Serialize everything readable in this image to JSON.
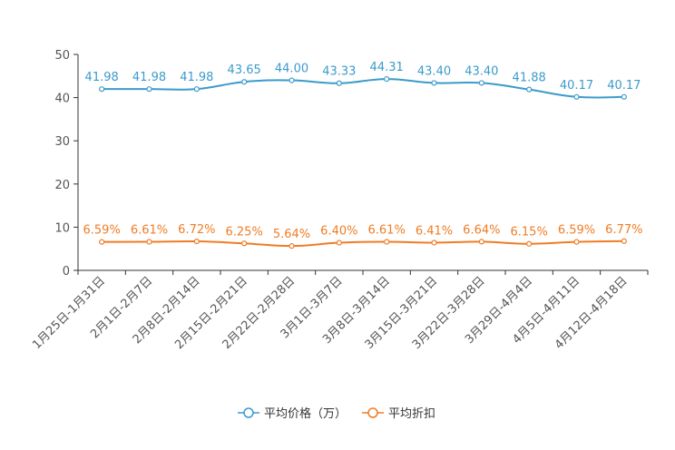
{
  "chart_data": {
    "type": "line",
    "categories": [
      "1月25日-1月31日",
      "2月1日-2月7日",
      "2月8日-2月14日",
      "2月15日-2月21日",
      "2月22日-2月28日",
      "3月1日-3月7日",
      "3月8日-3月14日",
      "3月15日-3月21日",
      "3月22日-3月28日",
      "3月29日-4月4日",
      "4月5日-4月11日",
      "4月12日-4月18日"
    ],
    "ylim": [
      0,
      50
    ],
    "yticks": [
      "0",
      "10",
      "20",
      "30",
      "40",
      "50"
    ],
    "series": [
      {
        "name": "平均价格（万）",
        "color": "#3b9bcb",
        "values": [
          41.98,
          41.98,
          41.98,
          43.65,
          44.0,
          43.33,
          44.31,
          43.4,
          43.4,
          41.88,
          40.17,
          40.17
        ],
        "labels": [
          "41.98",
          "41.98",
          "41.98",
          "43.65",
          "44.00",
          "43.33",
          "44.31",
          "43.40",
          "43.40",
          "41.88",
          "40.17",
          "40.17"
        ]
      },
      {
        "name": "平均折扣",
        "color": "#f07c24",
        "values": [
          6.59,
          6.61,
          6.72,
          6.25,
          5.64,
          6.4,
          6.61,
          6.41,
          6.64,
          6.15,
          6.59,
          6.77
        ],
        "labels": [
          "6.59%",
          "6.61%",
          "6.72%",
          "6.25%",
          "5.64%",
          "6.40%",
          "6.61%",
          "6.41%",
          "6.64%",
          "6.15%",
          "6.59%",
          "6.77%"
        ]
      }
    ],
    "legend": "bottom-center"
  }
}
